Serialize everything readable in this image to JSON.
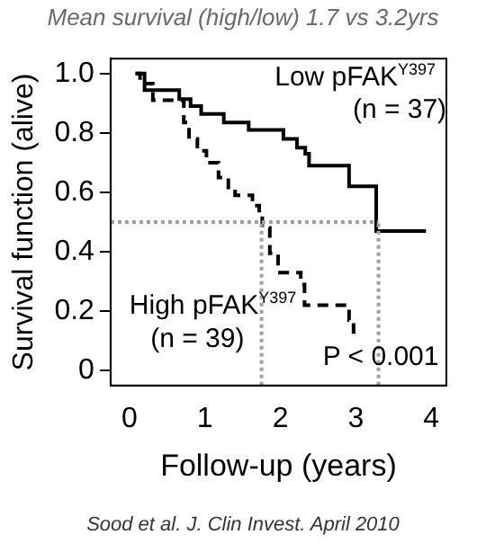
{
  "chart_data": {
    "type": "step",
    "title": "Mean survival (high/low) 1.7 vs 3.2yrs",
    "xlabel": "Follow-up (years)",
    "ylabel": "Survival function (alive)",
    "series": [
      {
        "name": "Low pFAK$^{Y397}$",
        "color": "#000000",
        "line_style": "solid",
        "x": [
          0.08,
          0.2,
          0.66,
          0.81,
          0.95,
          1.25,
          1.58,
          2.04,
          2.22,
          2.33,
          2.38,
          2.91,
          3.27,
          3.93
        ],
        "values": [
          1.0,
          0.944,
          0.914,
          0.89,
          0.864,
          0.835,
          0.81,
          0.78,
          0.75,
          0.73,
          0.69,
          0.62,
          0.47,
          0.47
        ]
      },
      {
        "name": "High pFAK$^{Y397}$",
        "color": "#000000",
        "line_style": "dashed",
        "x": [
          0.08,
          0.14,
          0.31,
          0.72,
          0.79,
          0.9,
          1.02,
          1.18,
          1.31,
          1.4,
          1.63,
          1.72,
          1.76,
          1.86,
          1.97,
          2.27,
          2.32,
          2.91,
          2.97,
          3.05
        ],
        "values": [
          1.0,
          0.966,
          0.91,
          0.835,
          0.78,
          0.74,
          0.7,
          0.65,
          0.61,
          0.59,
          0.555,
          0.53,
          0.48,
          0.395,
          0.33,
          0.29,
          0.22,
          0.17,
          0.13,
          0.13
        ]
      }
    ],
    "annotations": [
      "(n = 37)",
      "(n = 39)",
      "P < 0.001",
      "Sood et al. J. Clin Invest. April 2010"
    ],
    "ref_lines": [
      {
        "axis": "y",
        "value": 0.5,
        "color": "#a0a0a0",
        "line_style": "dotted"
      },
      {
        "axis": "x",
        "value": 1.75,
        "color": "#a0a0a0",
        "line_style": "dotted"
      },
      {
        "axis": "x",
        "value": 3.3,
        "color": "#a0a0a0",
        "line_style": "dotted"
      }
    ],
    "xlim": [
      -0.25,
      4.2
    ],
    "xticks": [
      0,
      1,
      2,
      3,
      4
    ],
    "ylim": [
      -0.05,
      1.05
    ],
    "yticks": [
      0,
      0.2,
      0.4,
      0.6,
      0.8,
      {
        "value": 1,
        "label": "1.0"
      }
    ],
    "grid": false,
    "legend": false,
    "marker": "none"
  }
}
